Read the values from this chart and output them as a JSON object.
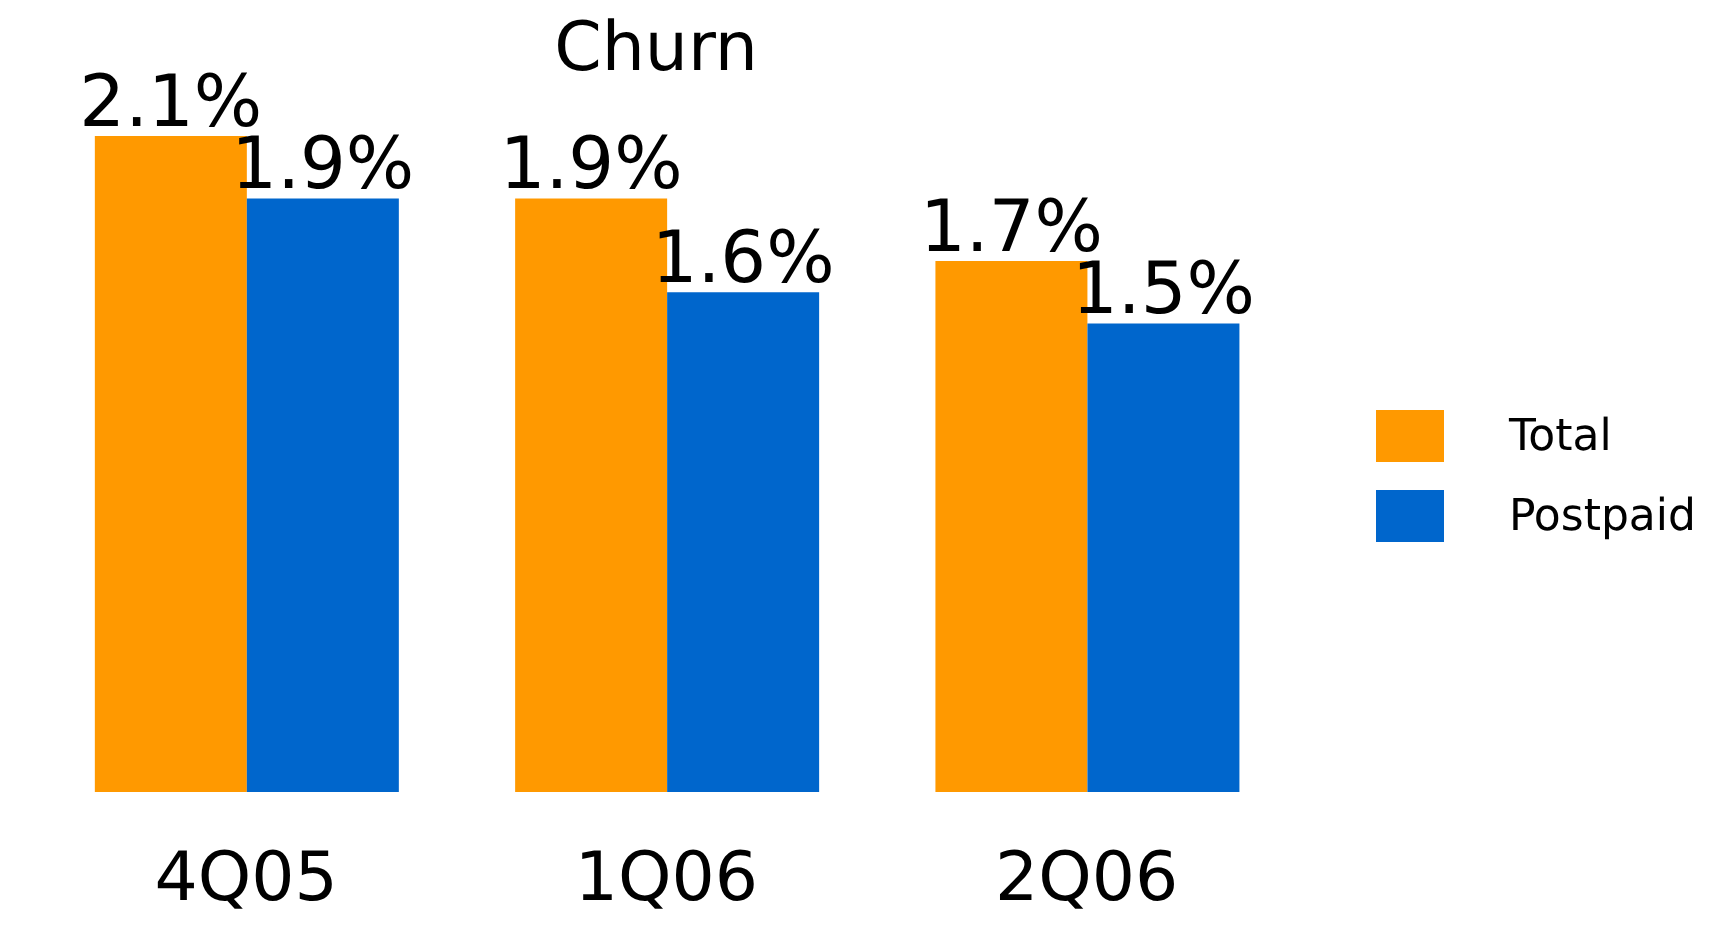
{
  "chart_data": {
    "type": "bar",
    "title": "Churn",
    "categories": [
      "4Q05",
      "1Q06",
      "2Q06"
    ],
    "series": [
      {
        "name": "Total",
        "color": "#ff9900",
        "values": [
          2.1,
          1.9,
          1.7
        ],
        "value_labels": [
          "2.1%",
          "1.9%",
          "1.7%"
        ]
      },
      {
        "name": "Postpaid",
        "color": "#0066cc",
        "values": [
          1.9,
          1.6,
          1.5
        ],
        "value_labels": [
          "1.9%",
          "1.6%",
          "1.5%"
        ]
      }
    ],
    "legend": "right",
    "tick_labels": "x"
  }
}
